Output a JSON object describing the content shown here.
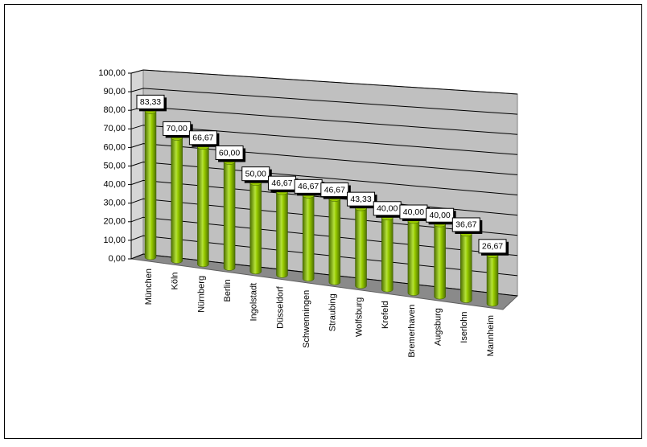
{
  "chart_data": {
    "type": "bar",
    "categories": [
      "München",
      "Köln",
      "Nürnberg",
      "Berlin",
      "Ingolstadt",
      "Düsseldorf",
      "Schwenningen",
      "Straubing",
      "Wolfsburg",
      "Krefeld",
      "Bremerhaven",
      "Augsburg",
      "Iserlohn",
      "Mannheim"
    ],
    "values": [
      83.33,
      70,
      66.67,
      60,
      50,
      46.67,
      46.67,
      46.67,
      43.33,
      40,
      40,
      40,
      36.67,
      26.67
    ],
    "value_labels": [
      "83,33",
      "70,00",
      "66,67",
      "60,00",
      "50,00",
      "46,67",
      "46,67",
      "46,67",
      "43,33",
      "40,00",
      "40,00",
      "40,00",
      "36,67",
      "26,67"
    ],
    "color": "#99cc00",
    "ylim": [
      0,
      100
    ],
    "yticks": [
      {
        "value": 0,
        "label": "0,00"
      },
      {
        "value": 10,
        "label": "10,00"
      },
      {
        "value": 20,
        "label": "20,00"
      },
      {
        "value": 30,
        "label": "30,00"
      },
      {
        "value": 40,
        "label": "40,00"
      },
      {
        "value": 50,
        "label": "50,00"
      },
      {
        "value": 60,
        "label": "60,00"
      },
      {
        "value": 70,
        "label": "70,00"
      },
      {
        "value": 80,
        "label": "80,00"
      },
      {
        "value": 90,
        "label": "90,00"
      },
      {
        "value": 100,
        "label": "100,00"
      }
    ],
    "grid": true
  }
}
